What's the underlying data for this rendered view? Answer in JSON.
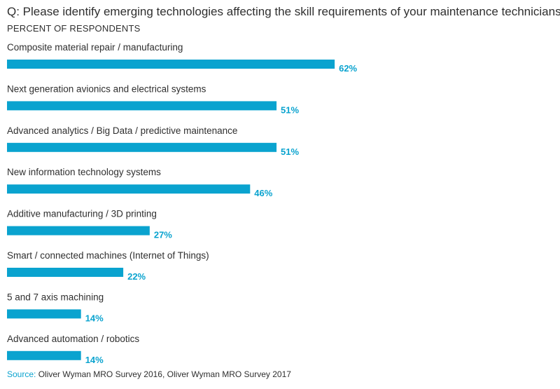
{
  "chart_data": {
    "type": "bar",
    "orientation": "horizontal",
    "title": "Q: Please identify emerging technologies affecting the skill requirements of your maintenance technicians",
    "subtitle": "PERCENT OF RESPONDENTS",
    "categories": [
      "Composite material repair / manufacturing",
      "Next generation avionics and electrical systems",
      "Advanced analytics / Big Data / predictive maintenance",
      "New information technology systems",
      "Additive manufacturing / 3D printing",
      "Smart / connected machines (Internet of Things)",
      "5 and 7 axis machining",
      "Advanced automation / robotics"
    ],
    "values": [
      62,
      51,
      51,
      46,
      27,
      22,
      14,
      14
    ],
    "value_labels": [
      "62%",
      "51%",
      "51%",
      "46%",
      "27%",
      "22%",
      "14%",
      "14%"
    ],
    "unit": "%",
    "xlim": [
      0,
      100
    ],
    "grid": false,
    "legend": "none",
    "bar_color": "#0aa3cf",
    "value_label_color": "#0aa3cf"
  },
  "source": {
    "label": "Source:",
    "text": " Oliver Wyman MRO Survey 2016, Oliver Wyman MRO Survey 2017",
    "label_color": "#0aa3cf"
  }
}
